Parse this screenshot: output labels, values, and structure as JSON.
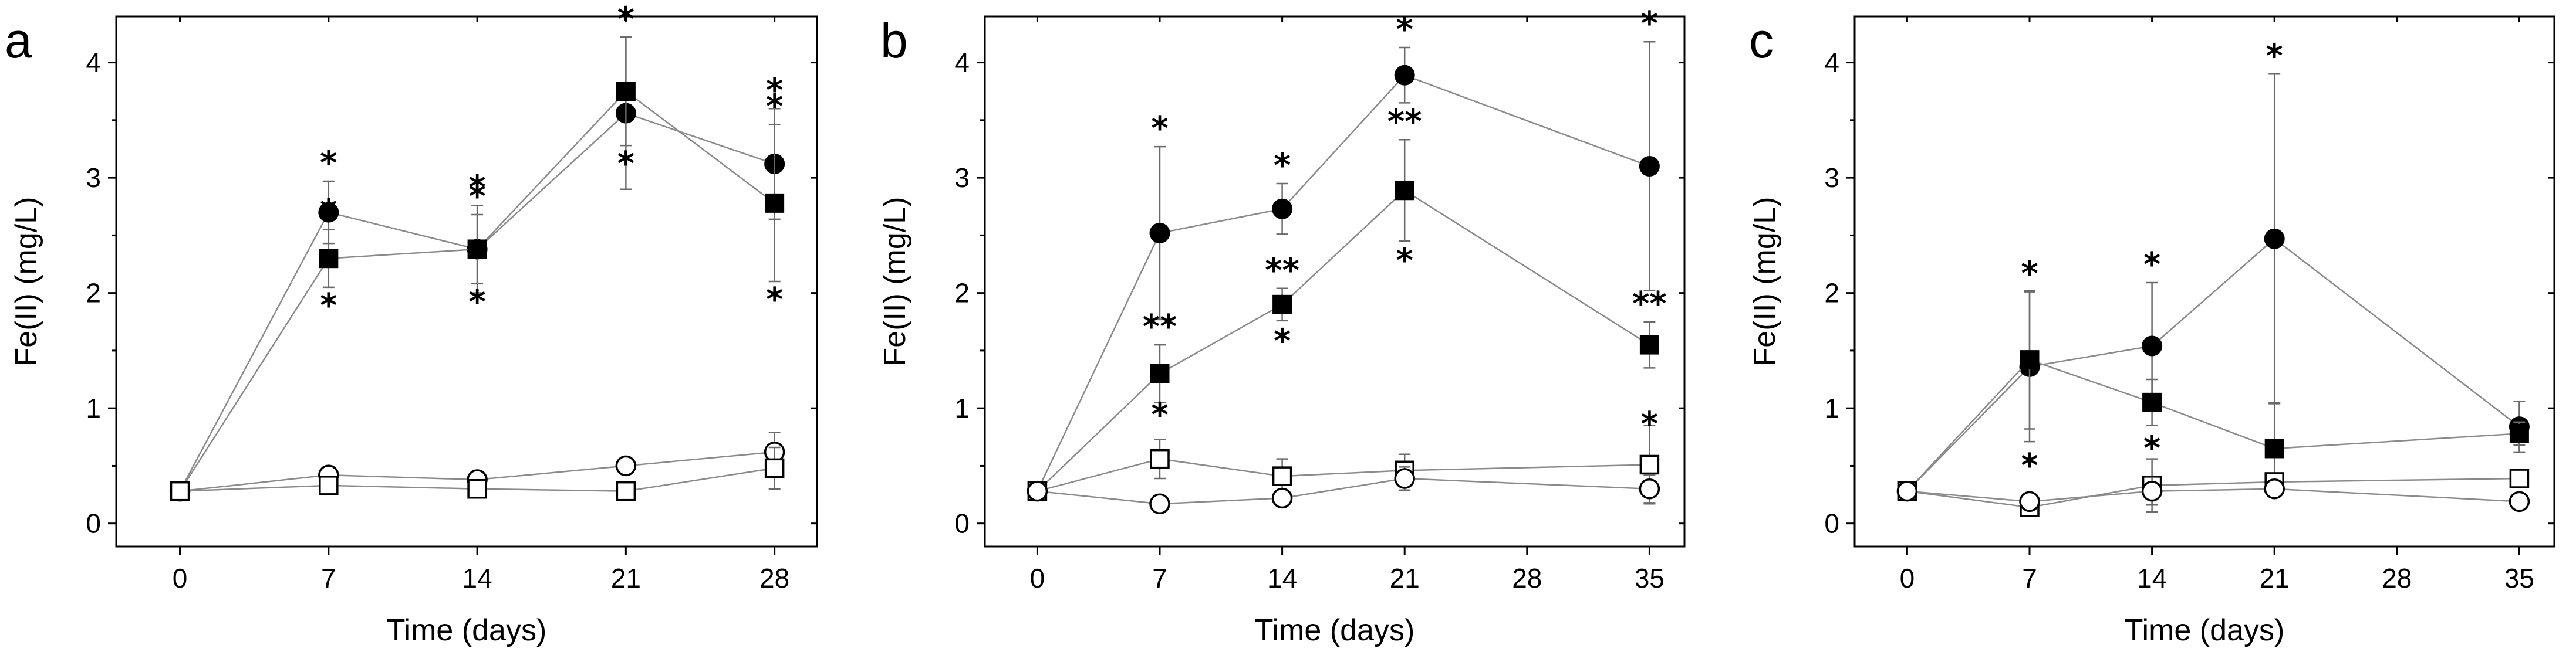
{
  "chart_data": [
    {
      "type": "line",
      "panel": "a",
      "xlabel": "Time (days)",
      "ylabel": "Fe(II) (mg/L)",
      "xlim": [
        -3,
        30
      ],
      "ylim": [
        -0.2,
        4.4
      ],
      "xticks": [
        0,
        7,
        14,
        21,
        28
      ],
      "yticks": [
        0,
        1,
        2,
        3,
        4
      ],
      "series": [
        {
          "name": "filled circle",
          "marker": "circle",
          "fill": "filled",
          "x": [
            0,
            7,
            14,
            21,
            28
          ],
          "y": [
            0.28,
            2.7,
            2.38,
            3.56,
            3.12
          ],
          "err": [
            0,
            0.27,
            0.38,
            0.66,
            0.48
          ],
          "sig": [
            "",
            "*",
            "*",
            "*",
            "*"
          ]
        },
        {
          "name": "filled square",
          "marker": "square",
          "fill": "filled",
          "x": [
            0,
            7,
            14,
            21,
            28
          ],
          "y": [
            0.28,
            2.3,
            2.38,
            3.75,
            2.78
          ],
          "err": [
            0,
            0.25,
            0.3,
            0.47,
            0.68
          ],
          "sig": [
            "",
            "*",
            "*",
            "*",
            "*"
          ]
        },
        {
          "name": "open circle",
          "marker": "circle",
          "fill": "open",
          "x": [
            0,
            7,
            14,
            21,
            28
          ],
          "y": [
            0.28,
            0.42,
            0.38,
            0.5,
            0.62
          ],
          "err": [
            0,
            0.04,
            0.04,
            0.05,
            0.17
          ],
          "sig": [
            "",
            "",
            "",
            "",
            ""
          ]
        },
        {
          "name": "open square",
          "marker": "square",
          "fill": "open",
          "x": [
            0,
            7,
            14,
            21,
            28
          ],
          "y": [
            0.28,
            0.33,
            0.3,
            0.28,
            0.48
          ],
          "err": [
            0,
            0.04,
            0.04,
            0.05,
            0.18
          ],
          "sig": [
            "",
            "",
            "",
            "",
            ""
          ]
        }
      ]
    },
    {
      "type": "line",
      "panel": "b",
      "xlabel": "Time (days)",
      "ylabel": "Fe(II) (mg/L)",
      "xlim": [
        -3,
        37
      ],
      "ylim": [
        -0.2,
        4.4
      ],
      "xticks": [
        0,
        7,
        14,
        21,
        28,
        35
      ],
      "yticks": [
        0,
        1,
        2,
        3,
        4
      ],
      "series": [
        {
          "name": "filled circle",
          "marker": "circle",
          "fill": "filled",
          "x": [
            0,
            7,
            14,
            21,
            35
          ],
          "y": [
            0.28,
            2.52,
            2.73,
            3.89,
            3.1
          ],
          "err": [
            0,
            0.75,
            0.22,
            0.24,
            1.08
          ],
          "sig": [
            "",
            "*",
            "*",
            "*",
            "*"
          ]
        },
        {
          "name": "filled square",
          "marker": "square",
          "fill": "filled",
          "x": [
            0,
            7,
            14,
            21,
            35
          ],
          "y": [
            0.28,
            1.3,
            1.9,
            2.89,
            1.55
          ],
          "err": [
            0,
            0.25,
            0.14,
            0.44,
            0.2
          ],
          "sig": [
            "",
            "**",
            "**",
            "**",
            "**"
          ]
        },
        {
          "name": "open square",
          "marker": "square",
          "fill": "open",
          "x": [
            0,
            7,
            14,
            21,
            35
          ],
          "y": [
            0.28,
            0.56,
            0.41,
            0.46,
            0.51
          ],
          "err": [
            0,
            0.17,
            0.15,
            0.14,
            0.34
          ],
          "sig": [
            "",
            "",
            "",
            "",
            ""
          ]
        },
        {
          "name": "open circle",
          "marker": "circle",
          "fill": "open",
          "x": [
            0,
            7,
            14,
            21,
            35
          ],
          "y": [
            0.28,
            0.17,
            0.22,
            0.39,
            0.3
          ],
          "err": [
            0,
            0.03,
            0.03,
            0.1,
            0.12
          ],
          "sig": [
            "",
            "",
            "",
            "",
            ""
          ]
        }
      ],
      "extra_sig": [
        {
          "x": 7,
          "y": 1.04,
          "text": "*"
        },
        {
          "x": 14,
          "y": 1.68,
          "text": "*"
        },
        {
          "x": 21,
          "y": 2.38,
          "text": "*"
        },
        {
          "x": 35,
          "y": 0.96,
          "text": "*"
        }
      ]
    },
    {
      "type": "line",
      "panel": "c",
      "xlabel": "Time (days)",
      "ylabel": "Fe(II) (mg/L)",
      "xlim": [
        -3,
        37
      ],
      "ylim": [
        -0.2,
        4.4
      ],
      "xticks": [
        0,
        7,
        14,
        21,
        28,
        35
      ],
      "yticks": [
        0,
        1,
        2,
        3,
        4
      ],
      "series": [
        {
          "name": "filled circle",
          "marker": "circle",
          "fill": "filled",
          "x": [
            0,
            7,
            14,
            21,
            35
          ],
          "y": [
            0.28,
            1.36,
            1.54,
            2.47,
            0.84
          ],
          "err": [
            0,
            0.65,
            0.55,
            1.43,
            0.22
          ],
          "sig": [
            "",
            "*",
            "*",
            "*",
            ""
          ]
        },
        {
          "name": "filled square",
          "marker": "square",
          "fill": "filled",
          "x": [
            0,
            7,
            14,
            21,
            35
          ],
          "y": [
            0.28,
            1.42,
            1.05,
            0.65,
            0.78
          ],
          "err": [
            0,
            0.6,
            0.2,
            0.4,
            0.1
          ],
          "sig": [
            "",
            "",
            "",
            "",
            ""
          ]
        },
        {
          "name": "open square",
          "marker": "square",
          "fill": "open",
          "x": [
            0,
            7,
            14,
            21,
            35
          ],
          "y": [
            0.28,
            0.14,
            0.33,
            0.36,
            0.39
          ],
          "err": [
            0,
            0.06,
            0.23,
            0.05,
            0.04
          ],
          "sig": [
            "",
            "",
            "",
            "",
            ""
          ]
        },
        {
          "name": "open circle",
          "marker": "circle",
          "fill": "open",
          "x": [
            0,
            7,
            14,
            21,
            35
          ],
          "y": [
            0.28,
            0.19,
            0.28,
            0.3,
            0.19
          ],
          "err": [
            0,
            0.05,
            0.12,
            0.04,
            0.05
          ],
          "sig": [
            "",
            "",
            "",
            "",
            ""
          ]
        }
      ],
      "extra_sig": [
        {
          "x": 7,
          "y": 0.6,
          "text": "*"
        },
        {
          "x": 14,
          "y": 0.75,
          "text": "*"
        }
      ]
    }
  ]
}
